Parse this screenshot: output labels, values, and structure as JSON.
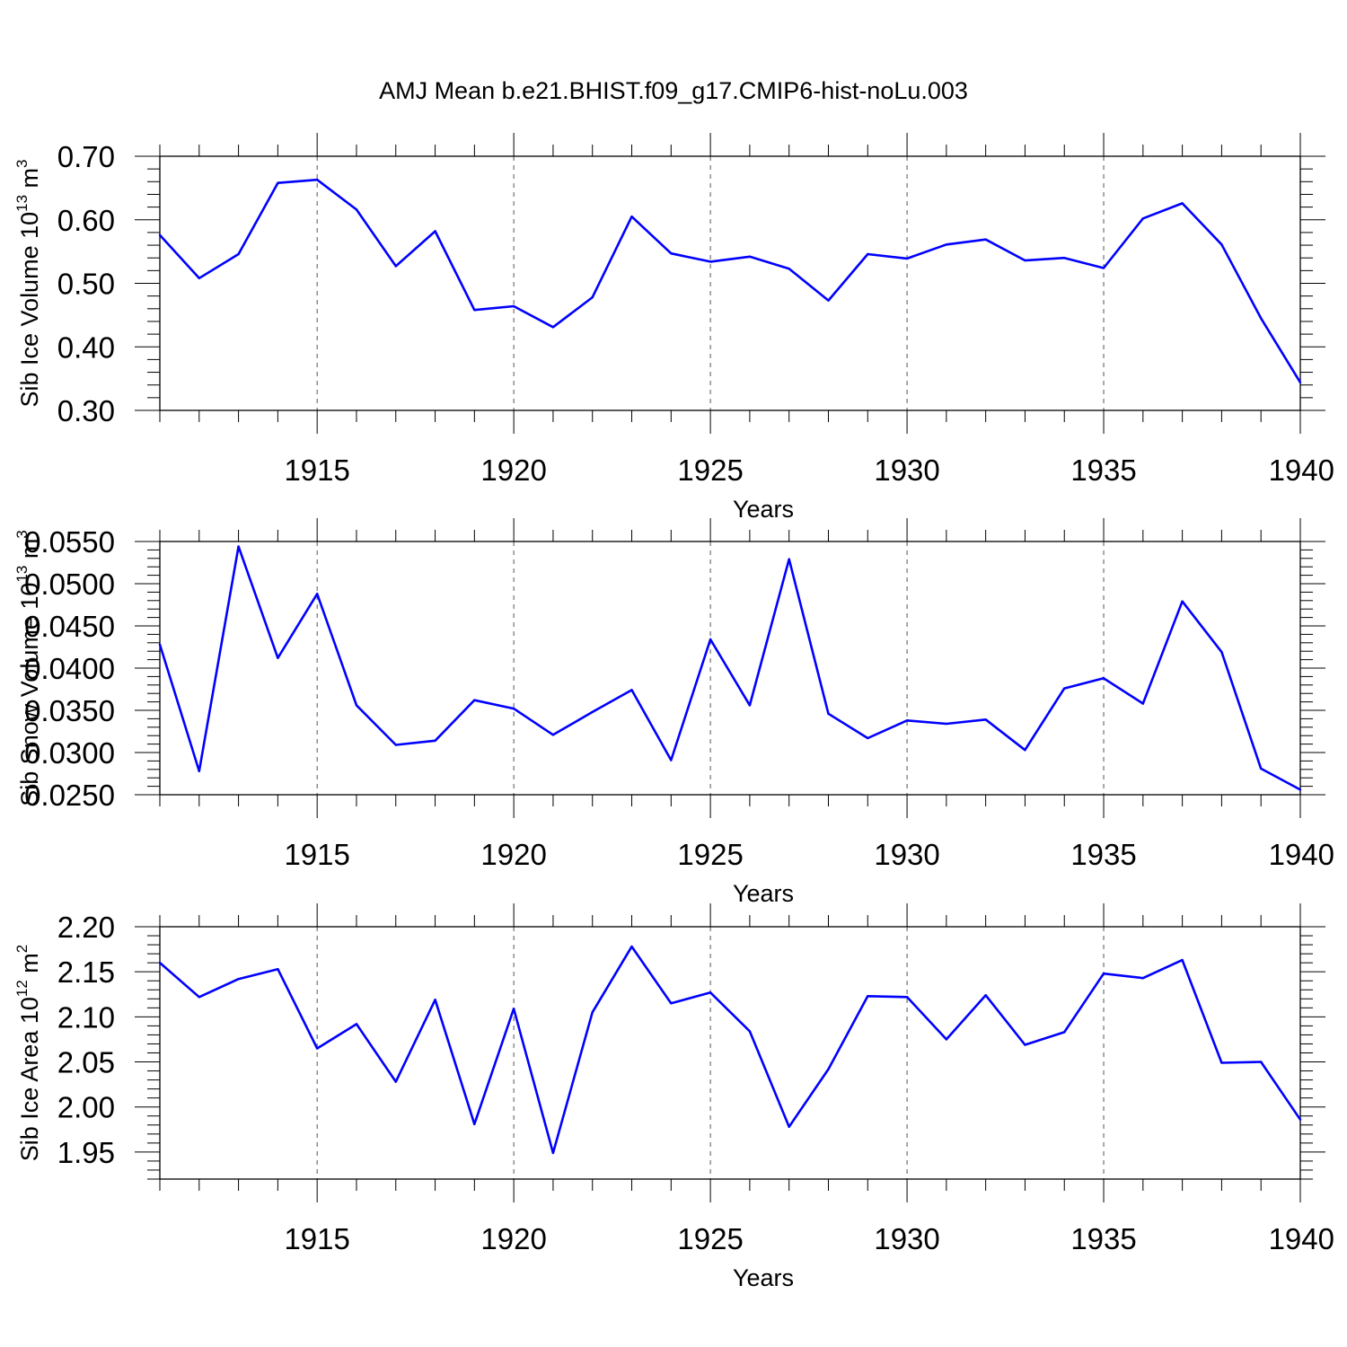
{
  "title": "AMJ Mean b.e21.BHIST.f09_g17.CMIP6-hist-noLu.003",
  "line_color": "#0000ff",
  "grid_color": "#555555",
  "chart_data": [
    {
      "type": "line",
      "xlabel": "Years",
      "ylabel": {
        "prefix": "Sib Ice Volume 10",
        "exp": "13",
        "unit": " m",
        "unit_exp": "3"
      },
      "xlim": [
        1911,
        1940
      ],
      "ylim": [
        0.3,
        0.7
      ],
      "xticks": [
        1915,
        1920,
        1925,
        1930,
        1935,
        1940
      ],
      "yticks": [
        "0.30",
        "0.40",
        "0.50",
        "0.60",
        "0.70"
      ],
      "x": [
        1911,
        1912,
        1913,
        1914,
        1915,
        1916,
        1917,
        1918,
        1919,
        1920,
        1921,
        1922,
        1923,
        1924,
        1925,
        1926,
        1927,
        1928,
        1929,
        1930,
        1931,
        1932,
        1933,
        1934,
        1935,
        1936,
        1937,
        1938,
        1939,
        1940
      ],
      "values": [
        0.576,
        0.508,
        0.546,
        0.658,
        0.663,
        0.616,
        0.527,
        0.582,
        0.458,
        0.464,
        0.431,
        0.478,
        0.605,
        0.547,
        0.534,
        0.542,
        0.523,
        0.473,
        0.546,
        0.539,
        0.561,
        0.569,
        0.536,
        0.54,
        0.524,
        0.602,
        0.626,
        0.561,
        0.445,
        0.344
      ],
      "grid": "vertical dashed at labeled years"
    },
    {
      "type": "line",
      "xlabel": "Years",
      "ylabel": {
        "prefix": "Sib Snow Volume 10",
        "exp": "13",
        "unit": " m",
        "unit_exp": "3"
      },
      "xlim": [
        1911,
        1940
      ],
      "ylim": [
        0.025,
        0.055
      ],
      "xticks": [
        1915,
        1920,
        1925,
        1930,
        1935,
        1940
      ],
      "yticks": [
        "0.0250",
        "0.0300",
        "0.0350",
        "0.0400",
        "0.0450",
        "0.0500",
        "0.0550"
      ],
      "x": [
        1911,
        1912,
        1913,
        1914,
        1915,
        1916,
        1917,
        1918,
        1919,
        1920,
        1921,
        1922,
        1923,
        1924,
        1925,
        1926,
        1927,
        1928,
        1929,
        1930,
        1931,
        1932,
        1933,
        1934,
        1935,
        1936,
        1937,
        1938,
        1939,
        1940
      ],
      "values": [
        0.0428,
        0.0278,
        0.0544,
        0.0412,
        0.0488,
        0.0356,
        0.0309,
        0.0314,
        0.0362,
        0.0352,
        0.0321,
        0.0348,
        0.0374,
        0.0291,
        0.0434,
        0.0356,
        0.0529,
        0.0346,
        0.0317,
        0.0338,
        0.0334,
        0.0339,
        0.0303,
        0.0376,
        0.0388,
        0.0358,
        0.0479,
        0.0419,
        0.0281,
        0.0256
      ],
      "grid": "vertical dashed at labeled years"
    },
    {
      "type": "line",
      "xlabel": "Years",
      "ylabel": {
        "prefix": "Sib Ice Area 10",
        "exp": "12",
        "unit": " m",
        "unit_exp": "2"
      },
      "xlim": [
        1911,
        1940
      ],
      "ylim": [
        1.92,
        2.2
      ],
      "xticks": [
        1915,
        1920,
        1925,
        1930,
        1935,
        1940
      ],
      "yticks": [
        "1.95",
        "2.00",
        "2.05",
        "2.10",
        "2.15",
        "2.20"
      ],
      "x": [
        1911,
        1912,
        1913,
        1914,
        1915,
        1916,
        1917,
        1918,
        1919,
        1920,
        1921,
        1922,
        1923,
        1924,
        1925,
        1926,
        1927,
        1928,
        1929,
        1930,
        1931,
        1932,
        1933,
        1934,
        1935,
        1936,
        1937,
        1938,
        1939,
        1940
      ],
      "values": [
        2.16,
        2.122,
        2.142,
        2.153,
        2.065,
        2.092,
        2.028,
        2.119,
        1.981,
        2.109,
        1.949,
        2.105,
        2.178,
        2.115,
        2.127,
        2.084,
        1.978,
        2.042,
        2.123,
        2.122,
        2.075,
        2.124,
        2.069,
        2.083,
        2.148,
        2.143,
        2.163,
        2.049,
        2.05,
        1.986
      ],
      "grid": "vertical dashed at labeled years"
    }
  ]
}
